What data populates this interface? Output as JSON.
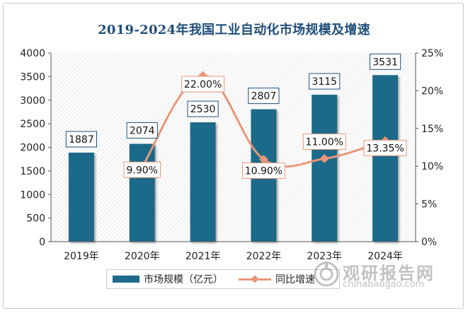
{
  "chart_data": {
    "type": "bar",
    "title": "2019-2024年我国工业自动化市场规模及增速",
    "categories": [
      "2019年",
      "2020年",
      "2021年",
      "2022年",
      "2023年",
      "2024年"
    ],
    "series": [
      {
        "name": "市场规模（亿元）",
        "type": "bar",
        "axis": "left",
        "values": [
          1887,
          2074,
          2530,
          2807,
          3115,
          3531
        ],
        "labels": [
          "1887",
          "2074",
          "2530",
          "2807",
          "3115",
          "3531"
        ]
      },
      {
        "name": "同比增速",
        "type": "line",
        "axis": "right",
        "values": [
          null,
          9.9,
          22.0,
          10.9,
          11.0,
          13.35
        ],
        "labels": [
          "",
          "9.90%",
          "22.00%",
          "10.90%",
          "11.00%",
          "13.35%"
        ]
      }
    ],
    "y_left": {
      "min": 0,
      "max": 4000,
      "ticks": [
        "0",
        "500",
        "1000",
        "1500",
        "2000",
        "2500",
        "3000",
        "3500",
        "4000"
      ]
    },
    "y_right": {
      "min": 0,
      "max": 25,
      "unit": "%",
      "ticks": [
        "0%",
        "5%",
        "10%",
        "15%",
        "20%",
        "25%"
      ]
    },
    "grid": false,
    "legend_position": "bottom",
    "colors": {
      "bar": "#1f6a8a",
      "line": "#e8967a",
      "title": "#1f4e79"
    }
  },
  "watermark": {
    "text": "观研报告网",
    "url": "chinabaogao.com"
  }
}
